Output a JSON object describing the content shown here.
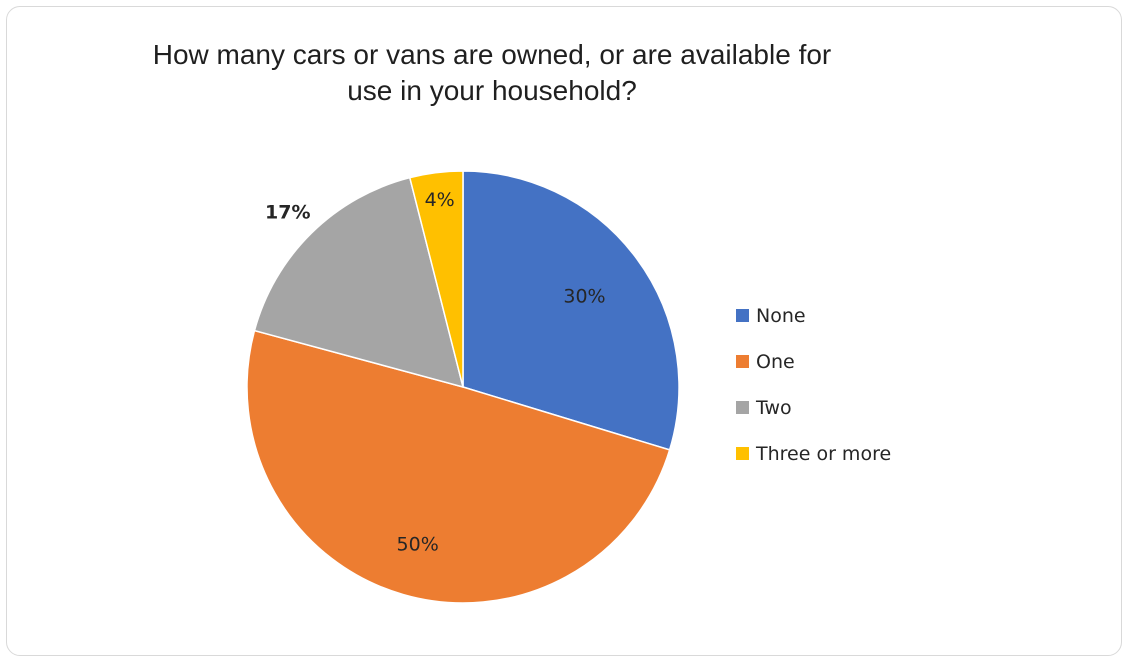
{
  "chart_data": {
    "type": "pie",
    "title": "How many cars or vans are owned, or are available for use in your household?",
    "categories": [
      "None",
      "One",
      "Two",
      "Three or more"
    ],
    "values": [
      30,
      50,
      17,
      4
    ],
    "data_labels": [
      "30%",
      "50%",
      "17%",
      "4%"
    ],
    "colors": [
      "#4472c4",
      "#ed7d31",
      "#a5a5a5",
      "#ffc000"
    ],
    "legend_placement": "right"
  }
}
